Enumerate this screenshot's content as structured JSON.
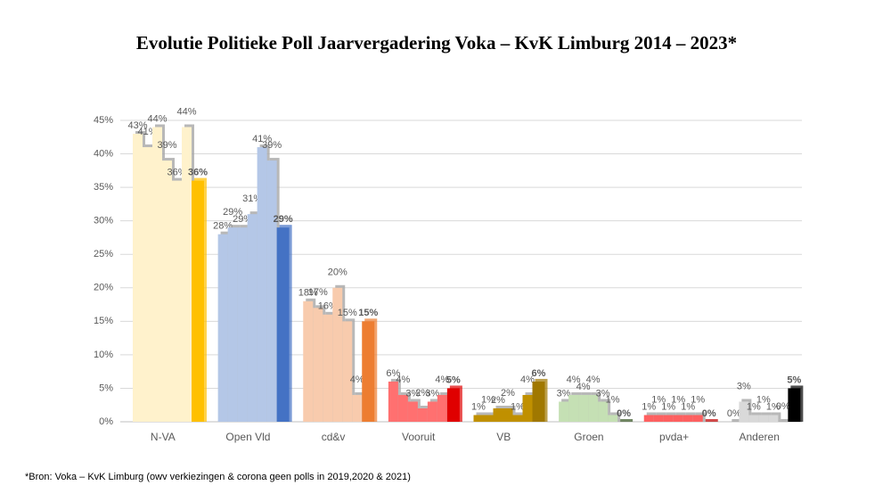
{
  "chart_data": {
    "type": "bar",
    "title": "Evolutie Politieke Poll Jaarvergadering Voka – KvK Limburg 2014 – 2023*",
    "footnote": "*Bron: Voka – KvK Limburg (owv verkiezingen & corona geen polls in 2019,2020 & 2021)",
    "categories": [
      "N-VA",
      "Open Vld",
      "cd&v",
      "Vooruit",
      "VB",
      "Groen",
      "pvda+",
      "Anderen"
    ],
    "values": [
      [
        43,
        41,
        44,
        39,
        36,
        44,
        36
      ],
      [
        28,
        29,
        29,
        31,
        41,
        39,
        29
      ],
      [
        18,
        17,
        16,
        20,
        15,
        4,
        15
      ],
      [
        6,
        4,
        3,
        2,
        3,
        4,
        5
      ],
      [
        1,
        1,
        2,
        2,
        1,
        4,
        6
      ],
      [
        3,
        4,
        4,
        4,
        3,
        1,
        0
      ],
      [
        1,
        1,
        1,
        1,
        1,
        1,
        0
      ],
      [
        0,
        3,
        1,
        1,
        1,
        0,
        5
      ]
    ],
    "value_labels": [
      [
        "43%",
        "41%",
        "44%",
        "39%",
        "36%",
        "44%",
        "36%"
      ],
      [
        "28%",
        "29%",
        "29%",
        "31%",
        "41%",
        "39%",
        "29%"
      ],
      [
        "18%",
        "17%",
        "16%",
        "20%",
        "15%",
        "4%",
        "15%"
      ],
      [
        "6%",
        "4%",
        "3%",
        "2%",
        "3%",
        "4%",
        "5%"
      ],
      [
        "1%",
        "1%",
        "2%",
        "2%",
        "1%",
        "4%",
        "6%"
      ],
      [
        "3%",
        "4%",
        "4%",
        "4%",
        "3%",
        "1%",
        "0%"
      ],
      [
        "1%",
        "1%",
        "1%",
        "1%",
        "1%",
        "1%",
        "0%"
      ],
      [
        "0%",
        "3%",
        "1%",
        "1%",
        "1%",
        "0%",
        "5%"
      ]
    ],
    "colors": [
      [
        "#fff2cc",
        "#ffc000"
      ],
      [
        "#b4c7e7",
        "#4472c4"
      ],
      [
        "#f8cbad",
        "#ed7d31"
      ],
      [
        "#ff7070",
        "#e00000"
      ],
      [
        "#c09000",
        "#a07800"
      ],
      [
        "#c5e0b4",
        "#375623"
      ],
      [
        "#ff6060",
        "#c00000"
      ],
      [
        "#d9d9d9",
        "#000000"
      ]
    ],
    "ylim": [
      0,
      45
    ],
    "yticks": [
      {
        "value": 0,
        "label": "0%"
      },
      {
        "value": 5,
        "label": "5%"
      },
      {
        "value": 10,
        "label": "10%"
      },
      {
        "value": 15,
        "label": "15%"
      },
      {
        "value": 20,
        "label": "20%"
      },
      {
        "value": 25,
        "label": "25%"
      },
      {
        "value": 30,
        "label": "30%"
      },
      {
        "value": 35,
        "label": "35%"
      },
      {
        "value": 40,
        "label": "40%"
      },
      {
        "value": 45,
        "label": "45%"
      }
    ],
    "grid": true
  }
}
